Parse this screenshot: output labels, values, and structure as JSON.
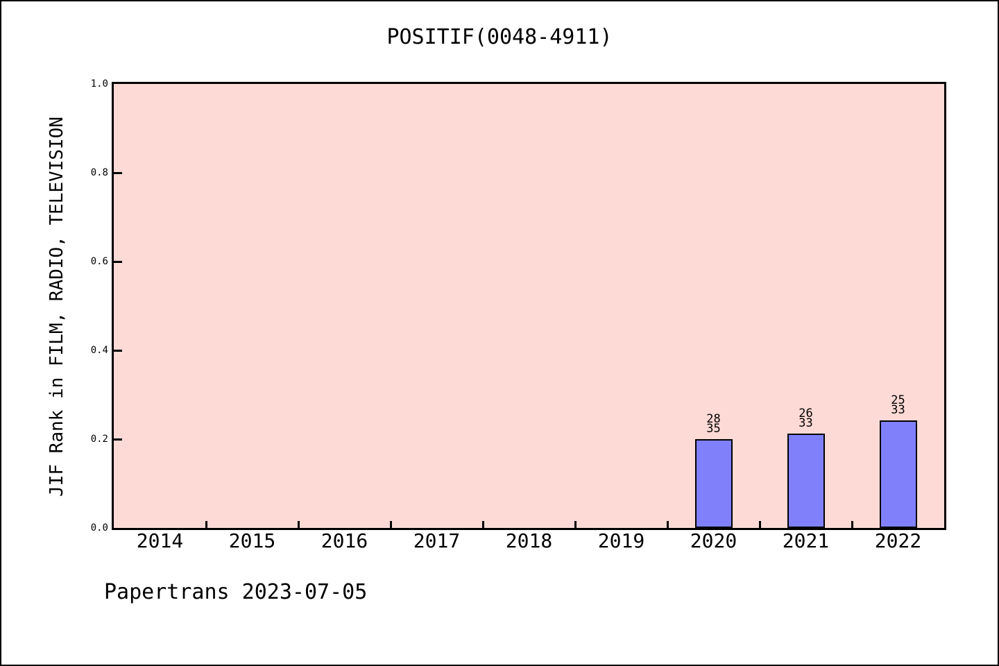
{
  "figure": {
    "background_color": "#ffffff",
    "border_color": "#000000"
  },
  "footer": {
    "text": "Papertrans 2023-07-05"
  },
  "chart_data": {
    "type": "bar",
    "title": "POSITIF(0048-4911)",
    "xlabel": "",
    "ylabel": "JIF Rank in FILM, RADIO, TELEVISION",
    "categories": [
      "2014",
      "2015",
      "2016",
      "2017",
      "2018",
      "2019",
      "2020",
      "2021",
      "2022"
    ],
    "values": [
      null,
      null,
      null,
      null,
      null,
      null,
      0.2,
      0.2121,
      0.2424
    ],
    "bars": [
      {
        "category": "2020",
        "rank": "28",
        "total": "35",
        "value": 0.2
      },
      {
        "category": "2021",
        "rank": "26",
        "total": "33",
        "value": 0.2121
      },
      {
        "category": "2022",
        "rank": "25",
        "total": "33",
        "value": 0.2424
      }
    ],
    "ylim": [
      0.0,
      1.0
    ],
    "yticks": [
      "0.0",
      "0.2",
      "0.4",
      "0.6",
      "0.8",
      "1.0"
    ],
    "grid": false,
    "legend": false,
    "plot_bg_color": "#fddad6",
    "bar_fill_color": "#8080fa",
    "bar_edge_color": "#000000",
    "text_color": "#000000"
  }
}
